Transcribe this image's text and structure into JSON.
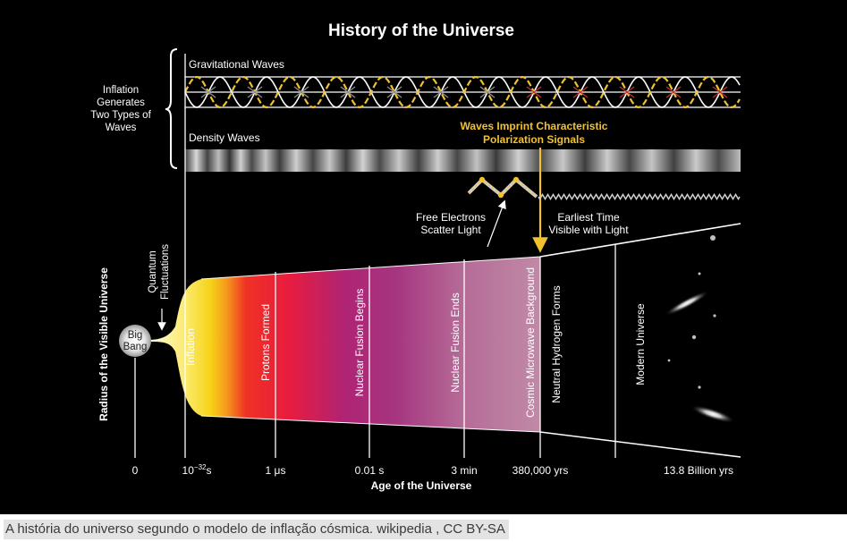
{
  "diagram": {
    "title": "History of the Universe",
    "left_label": [
      "Inflation",
      "Generates",
      "Two Types of",
      "Waves"
    ],
    "grav_waves_label": "Gravitational Waves",
    "density_waves_label": "Density Waves",
    "polarization_label": [
      "Waves Imprint Characteristic",
      "Polarization Signals"
    ],
    "free_electrons_label": [
      "Free Electrons",
      "Scatter Light"
    ],
    "earliest_time_label": [
      "Earliest Time",
      "Visible with Light"
    ],
    "quantum_label": [
      "Quantum",
      "Fluctuations"
    ],
    "big_bang_label": [
      "Big",
      "Bang"
    ],
    "y_axis_label": "Radius of the Visible Universe",
    "x_axis_label": "Age of the Universe",
    "eras": [
      "Inflation",
      "Protons Formed",
      "Nuclear Fusion Begins",
      "Nuclear Fusion Ends",
      "Cosmic Microwave Background",
      "Neutral Hydrogen Forms",
      "Modern Universe"
    ],
    "ticks": {
      "t0": "0",
      "t1_base": "10",
      "t1_exp": "−32",
      "t1_unit": "s",
      "t2": "1 μs",
      "t3": "0.01 s",
      "t4": "3 min",
      "t5": "380,000 yrs",
      "t6": "13.8 Billion yrs"
    },
    "colors": {
      "background": "#000000",
      "accent_yellow": "#f2c12e",
      "inflation": "#f7e017",
      "protons": "#ee1c25",
      "fusion": "#a8237a",
      "cmb": "#b06a93"
    }
  },
  "caption": "A história do universo segundo o modelo de inflação cósmica. wikipedia , CC BY-SA"
}
